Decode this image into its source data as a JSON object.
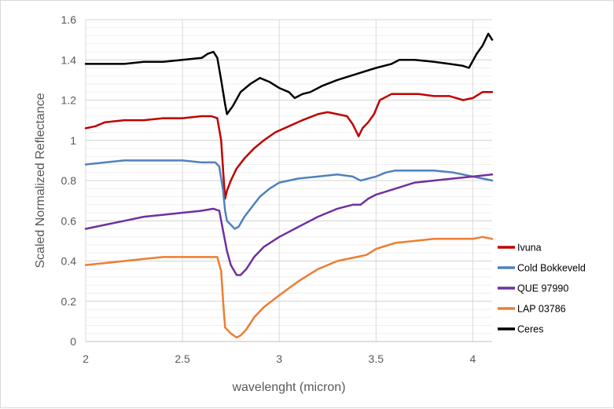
{
  "chart_data": {
    "type": "line",
    "title": "",
    "xlabel": "wavelenght (micron)",
    "ylabel": "Scaled Normalized Reflectance",
    "xlim": [
      2,
      4.1
    ],
    "ylim": [
      0,
      1.6
    ],
    "x_ticks": [
      2,
      2.5,
      3,
      3.5,
      4
    ],
    "x_tick_labels": [
      "2",
      "2.5",
      "3",
      "3.5",
      "4"
    ],
    "y_ticks": [
      0,
      0.2,
      0.4,
      0.6,
      0.8,
      1,
      1.2,
      1.4,
      1.6
    ],
    "y_tick_labels": [
      "0",
      "0.2",
      "0.4",
      "0.6",
      "0.8",
      "1",
      "1.2",
      "1.4",
      "1.6"
    ],
    "grid": {
      "major_horizontal": true,
      "minor_horizontal": true,
      "vertical": true
    },
    "legend_position": "right",
    "series": [
      {
        "name": "Ivuna",
        "color": "#c00000",
        "points": [
          [
            2.0,
            1.06
          ],
          [
            2.05,
            1.07
          ],
          [
            2.1,
            1.09
          ],
          [
            2.2,
            1.1
          ],
          [
            2.3,
            1.1
          ],
          [
            2.4,
            1.11
          ],
          [
            2.5,
            1.11
          ],
          [
            2.6,
            1.12
          ],
          [
            2.65,
            1.12
          ],
          [
            2.68,
            1.11
          ],
          [
            2.7,
            1.0
          ],
          [
            2.71,
            0.85
          ],
          [
            2.72,
            0.71
          ],
          [
            2.73,
            0.75
          ],
          [
            2.75,
            0.8
          ],
          [
            2.78,
            0.86
          ],
          [
            2.82,
            0.91
          ],
          [
            2.87,
            0.96
          ],
          [
            2.92,
            1.0
          ],
          [
            2.98,
            1.04
          ],
          [
            3.05,
            1.07
          ],
          [
            3.12,
            1.1
          ],
          [
            3.2,
            1.13
          ],
          [
            3.25,
            1.14
          ],
          [
            3.3,
            1.13
          ],
          [
            3.35,
            1.12
          ],
          [
            3.38,
            1.08
          ],
          [
            3.4,
            1.04
          ],
          [
            3.41,
            1.02
          ],
          [
            3.43,
            1.06
          ],
          [
            3.46,
            1.09
          ],
          [
            3.49,
            1.13
          ],
          [
            3.52,
            1.2
          ],
          [
            3.58,
            1.23
          ],
          [
            3.65,
            1.23
          ],
          [
            3.72,
            1.23
          ],
          [
            3.8,
            1.22
          ],
          [
            3.88,
            1.22
          ],
          [
            3.95,
            1.2
          ],
          [
            4.0,
            1.21
          ],
          [
            4.05,
            1.24
          ],
          [
            4.1,
            1.24
          ]
        ]
      },
      {
        "name": "Cold Bokkeveld",
        "color": "#4f81bd",
        "points": [
          [
            2.0,
            0.88
          ],
          [
            2.1,
            0.89
          ],
          [
            2.2,
            0.9
          ],
          [
            2.3,
            0.9
          ],
          [
            2.4,
            0.9
          ],
          [
            2.5,
            0.9
          ],
          [
            2.6,
            0.89
          ],
          [
            2.67,
            0.89
          ],
          [
            2.69,
            0.87
          ],
          [
            2.71,
            0.75
          ],
          [
            2.72,
            0.65
          ],
          [
            2.73,
            0.6
          ],
          [
            2.75,
            0.58
          ],
          [
            2.77,
            0.56
          ],
          [
            2.79,
            0.57
          ],
          [
            2.82,
            0.62
          ],
          [
            2.86,
            0.67
          ],
          [
            2.9,
            0.72
          ],
          [
            2.95,
            0.76
          ],
          [
            3.0,
            0.79
          ],
          [
            3.1,
            0.81
          ],
          [
            3.2,
            0.82
          ],
          [
            3.3,
            0.83
          ],
          [
            3.38,
            0.82
          ],
          [
            3.42,
            0.8
          ],
          [
            3.46,
            0.81
          ],
          [
            3.5,
            0.82
          ],
          [
            3.55,
            0.84
          ],
          [
            3.6,
            0.85
          ],
          [
            3.7,
            0.85
          ],
          [
            3.8,
            0.85
          ],
          [
            3.9,
            0.84
          ],
          [
            4.0,
            0.82
          ],
          [
            4.05,
            0.81
          ],
          [
            4.1,
            0.8
          ]
        ]
      },
      {
        "name": "QUE 97990",
        "color": "#7030a0",
        "points": [
          [
            2.0,
            0.56
          ],
          [
            2.1,
            0.58
          ],
          [
            2.2,
            0.6
          ],
          [
            2.3,
            0.62
          ],
          [
            2.4,
            0.63
          ],
          [
            2.5,
            0.64
          ],
          [
            2.6,
            0.65
          ],
          [
            2.66,
            0.66
          ],
          [
            2.69,
            0.65
          ],
          [
            2.71,
            0.55
          ],
          [
            2.73,
            0.45
          ],
          [
            2.75,
            0.38
          ],
          [
            2.78,
            0.33
          ],
          [
            2.8,
            0.33
          ],
          [
            2.83,
            0.36
          ],
          [
            2.87,
            0.42
          ],
          [
            2.92,
            0.47
          ],
          [
            3.0,
            0.52
          ],
          [
            3.1,
            0.57
          ],
          [
            3.2,
            0.62
          ],
          [
            3.3,
            0.66
          ],
          [
            3.38,
            0.68
          ],
          [
            3.42,
            0.68
          ],
          [
            3.46,
            0.71
          ],
          [
            3.5,
            0.73
          ],
          [
            3.6,
            0.76
          ],
          [
            3.7,
            0.79
          ],
          [
            3.8,
            0.8
          ],
          [
            3.9,
            0.81
          ],
          [
            4.0,
            0.82
          ],
          [
            4.1,
            0.83
          ]
        ]
      },
      {
        "name": "LAP 03786",
        "color": "#ed7d31",
        "points": [
          [
            2.0,
            0.38
          ],
          [
            2.1,
            0.39
          ],
          [
            2.2,
            0.4
          ],
          [
            2.3,
            0.41
          ],
          [
            2.4,
            0.42
          ],
          [
            2.5,
            0.42
          ],
          [
            2.6,
            0.42
          ],
          [
            2.68,
            0.42
          ],
          [
            2.7,
            0.35
          ],
          [
            2.71,
            0.2
          ],
          [
            2.72,
            0.07
          ],
          [
            2.75,
            0.04
          ],
          [
            2.78,
            0.02
          ],
          [
            2.8,
            0.03
          ],
          [
            2.83,
            0.06
          ],
          [
            2.87,
            0.12
          ],
          [
            2.92,
            0.17
          ],
          [
            3.0,
            0.23
          ],
          [
            3.1,
            0.3
          ],
          [
            3.2,
            0.36
          ],
          [
            3.3,
            0.4
          ],
          [
            3.4,
            0.42
          ],
          [
            3.45,
            0.43
          ],
          [
            3.5,
            0.46
          ],
          [
            3.6,
            0.49
          ],
          [
            3.7,
            0.5
          ],
          [
            3.8,
            0.51
          ],
          [
            3.9,
            0.51
          ],
          [
            4.0,
            0.51
          ],
          [
            4.05,
            0.52
          ],
          [
            4.1,
            0.51
          ]
        ]
      },
      {
        "name": "Ceres",
        "color": "#000000",
        "points": [
          [
            2.0,
            1.38
          ],
          [
            2.1,
            1.38
          ],
          [
            2.2,
            1.38
          ],
          [
            2.3,
            1.39
          ],
          [
            2.4,
            1.39
          ],
          [
            2.5,
            1.4
          ],
          [
            2.6,
            1.41
          ],
          [
            2.63,
            1.43
          ],
          [
            2.66,
            1.44
          ],
          [
            2.68,
            1.41
          ],
          [
            2.7,
            1.3
          ],
          [
            2.72,
            1.18
          ],
          [
            2.73,
            1.13
          ],
          [
            2.76,
            1.17
          ],
          [
            2.8,
            1.24
          ],
          [
            2.85,
            1.28
          ],
          [
            2.9,
            1.31
          ],
          [
            2.95,
            1.29
          ],
          [
            3.0,
            1.26
          ],
          [
            3.05,
            1.24
          ],
          [
            3.08,
            1.21
          ],
          [
            3.12,
            1.23
          ],
          [
            3.16,
            1.24
          ],
          [
            3.22,
            1.27
          ],
          [
            3.3,
            1.3
          ],
          [
            3.4,
            1.33
          ],
          [
            3.5,
            1.36
          ],
          [
            3.58,
            1.38
          ],
          [
            3.62,
            1.4
          ],
          [
            3.7,
            1.4
          ],
          [
            3.8,
            1.39
          ],
          [
            3.88,
            1.38
          ],
          [
            3.95,
            1.37
          ],
          [
            3.98,
            1.36
          ],
          [
            4.02,
            1.43
          ],
          [
            4.05,
            1.47
          ],
          [
            4.08,
            1.53
          ],
          [
            4.1,
            1.5
          ]
        ]
      }
    ]
  }
}
